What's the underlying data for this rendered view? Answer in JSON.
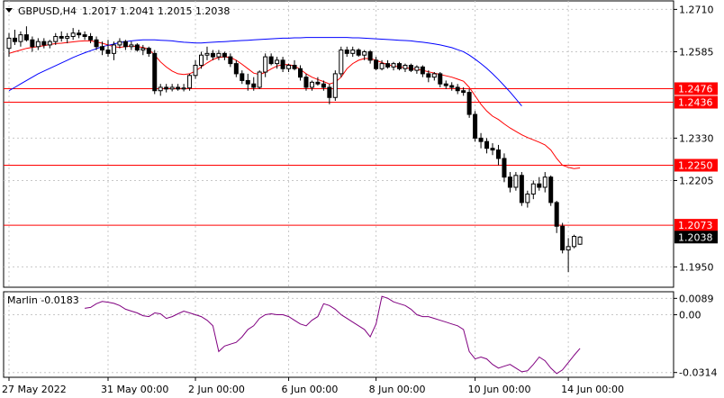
{
  "chart_data": [
    {
      "type": "candlestick",
      "symbol_label": "GBPUSD,H4",
      "ohlc_label": "1.2017 1.2041 1.2015 1.2038",
      "y_ticks": [
        "1.2710",
        "1.2585",
        "1.2330",
        "1.2205",
        "1.1950"
      ],
      "ylim": [
        1.189,
        1.2735
      ],
      "x_tick_labels": [
        "27 May 2022",
        "31 May 00:00",
        "2 Jun 00:00",
        "6 Jun 00:00",
        "8 Jun 00:00",
        "10 Jun 00:00",
        "14 Jun 00:00"
      ],
      "x_tick_positions": [
        0,
        17,
        32,
        48,
        63,
        80,
        96
      ],
      "horizontal_levels": [
        {
          "label": "1.2476",
          "value": 1.2476,
          "color": "#ff0000"
        },
        {
          "label": "1.2436",
          "value": 1.2436,
          "color": "#ff0000"
        },
        {
          "label": "1.2250",
          "value": 1.225,
          "color": "#ff0000"
        },
        {
          "label": "1.2073",
          "value": 1.2073,
          "color": "#ff0000"
        }
      ],
      "current_price": {
        "label": "1.2038",
        "value": 1.2038
      },
      "candles": [
        [
          1.2595,
          1.264,
          1.257,
          1.2625
        ],
        [
          1.2625,
          1.265,
          1.2605,
          1.2615
        ],
        [
          1.2615,
          1.2645,
          1.26,
          1.2635
        ],
        [
          1.2635,
          1.266,
          1.2615,
          1.262
        ],
        [
          1.262,
          1.263,
          1.2585,
          1.26
        ],
        [
          1.26,
          1.2625,
          1.259,
          1.2615
        ],
        [
          1.2615,
          1.2625,
          1.2595,
          1.2605
        ],
        [
          1.2605,
          1.262,
          1.2595,
          1.2615
        ],
        [
          1.2615,
          1.264,
          1.2605,
          1.263
        ],
        [
          1.263,
          1.2645,
          1.2615,
          1.2625
        ],
        [
          1.2625,
          1.264,
          1.261,
          1.263
        ],
        [
          1.263,
          1.2655,
          1.262,
          1.264
        ],
        [
          1.264,
          1.265,
          1.2625,
          1.2635
        ],
        [
          1.2635,
          1.2645,
          1.262,
          1.263
        ],
        [
          1.263,
          1.264,
          1.261,
          1.262
        ],
        [
          1.262,
          1.263,
          1.259,
          1.26
        ],
        [
          1.26,
          1.2615,
          1.2575,
          1.259
        ],
        [
          1.259,
          1.262,
          1.257,
          1.258
        ],
        [
          1.258,
          1.2615,
          1.256,
          1.2605
        ],
        [
          1.2605,
          1.2625,
          1.2595,
          1.2615
        ],
        [
          1.2615,
          1.262,
          1.259,
          1.26
        ],
        [
          1.26,
          1.2615,
          1.259,
          1.2605
        ],
        [
          1.2605,
          1.261,
          1.2585,
          1.259
        ],
        [
          1.259,
          1.2605,
          1.2575,
          1.2595
        ],
        [
          1.2595,
          1.26,
          1.257,
          1.258
        ],
        [
          1.258,
          1.259,
          1.246,
          1.247
        ],
        [
          1.247,
          1.249,
          1.2455,
          1.248
        ],
        [
          1.248,
          1.249,
          1.2465,
          1.2475
        ],
        [
          1.2475,
          1.249,
          1.2468,
          1.248
        ],
        [
          1.248,
          1.249,
          1.247,
          1.2475
        ],
        [
          1.2475,
          1.249,
          1.2468,
          1.2478
        ],
        [
          1.2478,
          1.252,
          1.247,
          1.2515
        ],
        [
          1.2515,
          1.256,
          1.2505,
          1.2545
        ],
        [
          1.2545,
          1.2585,
          1.2535,
          1.2575
        ],
        [
          1.2575,
          1.26,
          1.256,
          1.258
        ],
        [
          1.258,
          1.259,
          1.256,
          1.257
        ],
        [
          1.257,
          1.259,
          1.256,
          1.258
        ],
        [
          1.258,
          1.2585,
          1.256,
          1.257
        ],
        [
          1.257,
          1.258,
          1.254,
          1.255
        ],
        [
          1.255,
          1.256,
          1.251,
          1.252
        ],
        [
          1.252,
          1.253,
          1.249,
          1.25
        ],
        [
          1.25,
          1.252,
          1.247,
          1.249
        ],
        [
          1.249,
          1.251,
          1.247,
          1.248
        ],
        [
          1.248,
          1.253,
          1.2475,
          1.2525
        ],
        [
          1.2525,
          1.258,
          1.251,
          1.257
        ],
        [
          1.257,
          1.258,
          1.2545,
          1.255
        ],
        [
          1.255,
          1.257,
          1.2535,
          1.256
        ],
        [
          1.256,
          1.257,
          1.2525,
          1.2535
        ],
        [
          1.2535,
          1.255,
          1.2525,
          1.2545
        ],
        [
          1.2545,
          1.256,
          1.253,
          1.2535
        ],
        [
          1.2535,
          1.2545,
          1.25,
          1.251
        ],
        [
          1.251,
          1.252,
          1.247,
          1.248
        ],
        [
          1.248,
          1.25,
          1.247,
          1.2495
        ],
        [
          1.2495,
          1.251,
          1.2485,
          1.249
        ],
        [
          1.249,
          1.25,
          1.247,
          1.248
        ],
        [
          1.248,
          1.249,
          1.243,
          1.245
        ],
        [
          1.245,
          1.253,
          1.244,
          1.252
        ],
        [
          1.252,
          1.26,
          1.251,
          1.259
        ],
        [
          1.259,
          1.26,
          1.257,
          1.258
        ],
        [
          1.258,
          1.26,
          1.257,
          1.259
        ],
        [
          1.259,
          1.2595,
          1.257,
          1.2575
        ],
        [
          1.2575,
          1.259,
          1.256,
          1.2585
        ],
        [
          1.2585,
          1.259,
          1.255,
          1.256
        ],
        [
          1.256,
          1.257,
          1.253,
          1.2535
        ],
        [
          1.2535,
          1.256,
          1.253,
          1.255
        ],
        [
          1.255,
          1.256,
          1.2535,
          1.254
        ],
        [
          1.254,
          1.2555,
          1.253,
          1.255
        ],
        [
          1.255,
          1.2555,
          1.253,
          1.2535
        ],
        [
          1.2535,
          1.255,
          1.2525,
          1.2545
        ],
        [
          1.2545,
          1.255,
          1.2525,
          1.253
        ],
        [
          1.253,
          1.2545,
          1.252,
          1.254
        ],
        [
          1.254,
          1.2545,
          1.251,
          1.252
        ],
        [
          1.252,
          1.253,
          1.2495,
          1.251
        ],
        [
          1.251,
          1.2525,
          1.25,
          1.252
        ],
        [
          1.252,
          1.2525,
          1.248,
          1.249
        ],
        [
          1.249,
          1.25,
          1.2475,
          1.2485
        ],
        [
          1.2485,
          1.2495,
          1.247,
          1.248
        ],
        [
          1.248,
          1.249,
          1.246,
          1.247
        ],
        [
          1.247,
          1.248,
          1.2455,
          1.2465
        ],
        [
          1.2465,
          1.2475,
          1.239,
          1.24
        ],
        [
          1.24,
          1.241,
          1.232,
          1.233
        ],
        [
          1.233,
          1.2345,
          1.23,
          1.232
        ],
        [
          1.232,
          1.233,
          1.2285,
          1.23
        ],
        [
          1.23,
          1.2315,
          1.228,
          1.2295
        ],
        [
          1.2295,
          1.231,
          1.225,
          1.227
        ],
        [
          1.227,
          1.2285,
          1.22,
          1.2215
        ],
        [
          1.2215,
          1.223,
          1.217,
          1.2185
        ],
        [
          1.2185,
          1.223,
          1.2175,
          1.222
        ],
        [
          1.222,
          1.223,
          1.213,
          1.214
        ],
        [
          1.214,
          1.2175,
          1.2125,
          1.2165
        ],
        [
          1.2165,
          1.2205,
          1.215,
          1.2195
        ],
        [
          1.2195,
          1.2215,
          1.2175,
          1.2185
        ],
        [
          1.2185,
          1.223,
          1.217,
          1.2215
        ],
        [
          1.2215,
          1.222,
          1.213,
          1.214
        ],
        [
          1.214,
          1.2145,
          1.205,
          1.207
        ],
        [
          1.207,
          1.208,
          1.199,
          1.2
        ],
        [
          1.2,
          1.2035,
          1.1935,
          1.201
        ],
        [
          1.201,
          1.2045,
          1.2005,
          1.204
        ],
        [
          1.2017,
          1.2041,
          1.2015,
          1.2038
        ]
      ],
      "series": [
        {
          "kind": "ma",
          "color": "#ff0000",
          "start": 0,
          "values": [
            1.258,
            1.2585,
            1.259,
            1.2595,
            1.2598,
            1.26,
            1.2603,
            1.2606,
            1.2609,
            1.261,
            1.2612,
            1.2614,
            1.2616,
            1.2617,
            1.2617,
            1.2614,
            1.261,
            1.2605,
            1.26,
            1.2598,
            1.26,
            1.2602,
            1.26,
            1.2598,
            1.2592,
            1.2575,
            1.2555,
            1.254,
            1.2528,
            1.252,
            1.2518,
            1.252,
            1.2528,
            1.254,
            1.2552,
            1.2562,
            1.2568,
            1.257,
            1.2568,
            1.256,
            1.2548,
            1.2535,
            1.2522,
            1.2518,
            1.2524,
            1.2534,
            1.2543,
            1.2547,
            1.2547,
            1.2543,
            1.2533,
            1.252,
            1.251,
            1.2503,
            1.2497,
            1.249,
            1.2495,
            1.251,
            1.2535,
            1.255,
            1.256,
            1.2565,
            1.2565,
            1.256,
            1.2553,
            1.2547,
            1.2543,
            1.254,
            1.2538,
            1.2535,
            1.2533,
            1.253,
            1.2526,
            1.2522,
            1.2518,
            1.2514,
            1.251,
            1.2504,
            1.2498,
            1.248,
            1.2455,
            1.243,
            1.241,
            1.2395,
            1.2385,
            1.2372,
            1.236,
            1.235,
            1.234,
            1.2332,
            1.2325,
            1.2318,
            1.231,
            1.2295,
            1.227,
            1.225,
            1.2244,
            1.224,
            1.2242
          ]
        },
        {
          "kind": "ma",
          "color": "#0000ff",
          "start": 0,
          "values": [
            1.247,
            1.248,
            1.249,
            1.25,
            1.251,
            1.252,
            1.2528,
            1.2536,
            1.2544,
            1.2552,
            1.256,
            1.2568,
            1.2575,
            1.2582,
            1.2588,
            1.2594,
            1.26,
            1.2604,
            1.2608,
            1.2612,
            1.2615,
            1.2617,
            1.2619,
            1.262,
            1.262,
            1.262,
            1.2619,
            1.2618,
            1.2617,
            1.2615,
            1.2613,
            1.2612,
            1.2611,
            1.2611,
            1.2612,
            1.2613,
            1.2614,
            1.2615,
            1.2616,
            1.2617,
            1.2618,
            1.2619,
            1.262,
            1.2621,
            1.2622,
            1.2623,
            1.2624,
            1.2625,
            1.2625,
            1.2626,
            1.2626,
            1.2627,
            1.2627,
            1.2627,
            1.2627,
            1.2627,
            1.2627,
            1.2627,
            1.2627,
            1.2626,
            1.2626,
            1.2625,
            1.2624,
            1.2623,
            1.2622,
            1.2621,
            1.262,
            1.2619,
            1.2618,
            1.2617,
            1.2615,
            1.2613,
            1.2611,
            1.2608,
            1.2605,
            1.2601,
            1.2597,
            1.2591,
            1.2585,
            1.2575,
            1.2563,
            1.255,
            1.2536,
            1.252,
            1.2503,
            1.2485,
            1.2466,
            1.2446,
            1.2425
          ]
        }
      ]
    },
    {
      "type": "line",
      "indicator_label": "Marlin -0.0183",
      "y_ticks": [
        "0.0089",
        "0.00",
        "-0.0314"
      ],
      "ylim": [
        -0.034,
        0.0125
      ],
      "series": [
        {
          "color": "#800080",
          "values": [
            0.0035,
            0.004,
            0.006,
            0.0072,
            0.0068,
            0.0062,
            0.005,
            0.003,
            0.002,
            0.001,
            -0.0005,
            -0.001,
            0.001,
            0.0005,
            -0.002,
            -0.001,
            0.0005,
            0.002,
            0.001,
            0.0,
            -0.001,
            -0.003,
            -0.006,
            -0.02,
            -0.017,
            -0.016,
            -0.015,
            -0.012,
            -0.008,
            -0.006,
            -0.002,
            0.0,
            0.0005,
            0.0,
            0.0,
            -0.001,
            -0.003,
            -0.005,
            -0.006,
            -0.003,
            -0.001,
            0.006,
            0.005,
            0.003,
            0.0,
            -0.002,
            -0.004,
            -0.006,
            -0.008,
            -0.012,
            -0.005,
            0.01,
            0.009,
            0.007,
            0.006,
            0.005,
            0.003,
            0.0,
            -0.001,
            -0.001,
            -0.002,
            -0.003,
            -0.004,
            -0.005,
            -0.006,
            -0.008,
            -0.02,
            -0.024,
            -0.023,
            -0.024,
            -0.027,
            -0.029,
            -0.028,
            -0.027,
            -0.029,
            -0.031,
            -0.0305,
            -0.027,
            -0.023,
            -0.025,
            -0.029,
            -0.032,
            -0.03,
            -0.026,
            -0.022,
            -0.0183
          ]
        }
      ]
    }
  ]
}
